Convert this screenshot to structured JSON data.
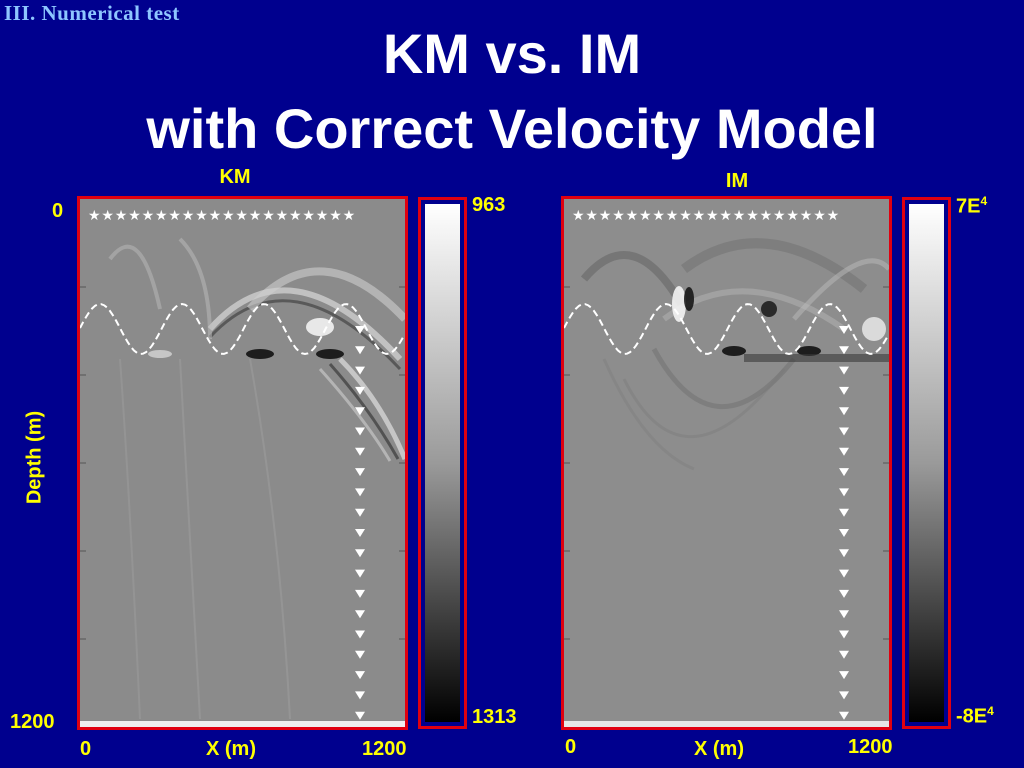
{
  "section_label": "III. Numerical  test",
  "title_line1": "KM vs. IM",
  "title_line2": "with Correct Velocity Model",
  "y_axis_label": "Depth (m)",
  "y_ticks": {
    "top": "0",
    "bottom": "1200"
  },
  "panels": [
    {
      "label": "KM",
      "x_label": "X (m)",
      "x_ticks": {
        "left": "0",
        "right": "1200"
      },
      "colorbar": {
        "max": "963",
        "min": "1313"
      }
    },
    {
      "label": "IM",
      "x_label": "X (m)",
      "x_ticks": {
        "left": "0",
        "right": "1200"
      },
      "colorbar": {
        "max_base": "7E",
        "max_exp": "4",
        "min_base": "-8E",
        "min_exp": "4"
      }
    }
  ],
  "colors": {
    "background": "#00008e",
    "frame": "#e00010",
    "axis_text": "#ffff00",
    "title": "#ffffff",
    "section": "#8ec6ff"
  }
}
